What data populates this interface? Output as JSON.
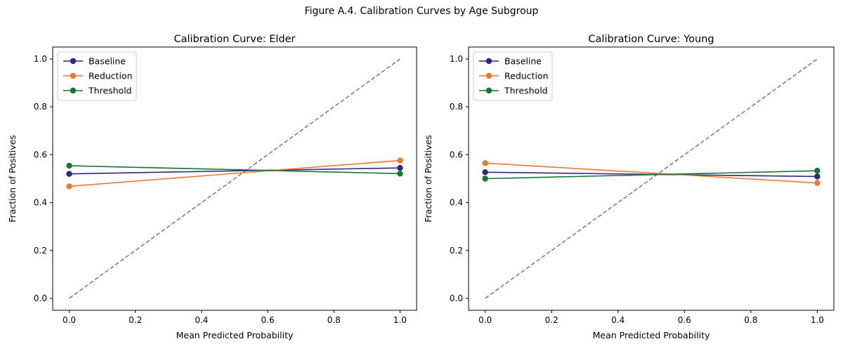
{
  "figure_title": "Figure A.4. Calibration Curves by Age Subgroup",
  "chart_data": [
    {
      "type": "line",
      "title": "Calibration Curve: Elder",
      "xlabel": "Mean Predicted Probability",
      "ylabel": "Fraction of Positives",
      "xlim": [
        -0.05,
        1.05
      ],
      "ylim": [
        -0.05,
        1.05
      ],
      "xticks": [
        0.0,
        0.2,
        0.4,
        0.6,
        0.8,
        1.0
      ],
      "yticks": [
        0.0,
        0.2,
        0.4,
        0.6,
        0.8,
        1.0
      ],
      "grid": false,
      "legend": "upper left",
      "reference_line": {
        "x": [
          0,
          1
        ],
        "y": [
          0,
          1
        ],
        "style": "dashed",
        "color": "#808080"
      },
      "series": [
        {
          "name": "Baseline",
          "color": "#332288",
          "x": [
            0.0,
            1.0
          ],
          "y": [
            0.52,
            0.545
          ]
        },
        {
          "name": "Reduction",
          "color": "#ee7733",
          "x": [
            0.0,
            1.0
          ],
          "y": [
            0.468,
            0.576
          ]
        },
        {
          "name": "Threshold",
          "color": "#117733",
          "x": [
            0.0,
            1.0
          ],
          "y": [
            0.554,
            0.521
          ]
        }
      ]
    },
    {
      "type": "line",
      "title": "Calibration Curve: Young",
      "xlabel": "Mean Predicted Probability",
      "ylabel": "Fraction of Positives",
      "xlim": [
        -0.05,
        1.05
      ],
      "ylim": [
        -0.05,
        1.05
      ],
      "xticks": [
        0.0,
        0.2,
        0.4,
        0.6,
        0.8,
        1.0
      ],
      "yticks": [
        0.0,
        0.2,
        0.4,
        0.6,
        0.8,
        1.0
      ],
      "grid": false,
      "legend": "upper left",
      "reference_line": {
        "x": [
          0,
          1
        ],
        "y": [
          0,
          1
        ],
        "style": "dashed",
        "color": "#808080"
      },
      "series": [
        {
          "name": "Baseline",
          "color": "#332288",
          "x": [
            0.0,
            1.0
          ],
          "y": [
            0.527,
            0.509
          ]
        },
        {
          "name": "Reduction",
          "color": "#ee7733",
          "x": [
            0.0,
            1.0
          ],
          "y": [
            0.565,
            0.482
          ]
        },
        {
          "name": "Threshold",
          "color": "#117733",
          "x": [
            0.0,
            1.0
          ],
          "y": [
            0.5,
            0.533
          ]
        }
      ]
    }
  ]
}
